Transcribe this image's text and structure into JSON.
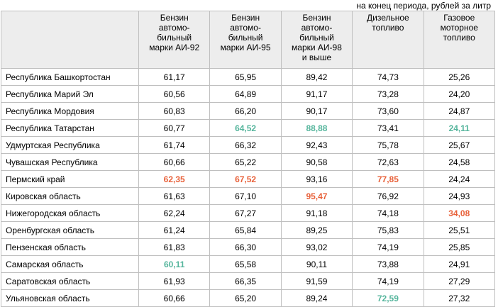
{
  "caption": "на конец периода, рублей за литр",
  "columns": [
    [
      "Бензин",
      "автомо-",
      "бильный",
      "марки АИ-92"
    ],
    [
      "Бензин",
      "автомо-",
      "бильный",
      "марки АИ-95"
    ],
    [
      "Бензин",
      "автомо-",
      "бильный",
      "марки АИ-98",
      "и выше"
    ],
    [
      "Дизельное",
      "топливо"
    ],
    [
      "Газовое",
      "моторное",
      "топливо"
    ]
  ],
  "rows": [
    {
      "name": "Республика Башкортостан",
      "values": [
        "61,17",
        "65,95",
        "89,42",
        "74,73",
        "25,26"
      ],
      "hl": [
        "",
        "",
        "",
        "",
        ""
      ]
    },
    {
      "name": "Республика Марий Эл",
      "values": [
        "60,56",
        "64,89",
        "91,17",
        "73,28",
        "24,20"
      ],
      "hl": [
        "",
        "",
        "",
        "",
        ""
      ]
    },
    {
      "name": "Республика Мордовия",
      "values": [
        "60,83",
        "66,20",
        "90,17",
        "73,60",
        "24,87"
      ],
      "hl": [
        "",
        "",
        "",
        "",
        ""
      ]
    },
    {
      "name": "Республика Татарстан",
      "values": [
        "60,77",
        "64,52",
        "88,88",
        "73,41",
        "24,11"
      ],
      "hl": [
        "",
        "green",
        "green",
        "",
        "green"
      ]
    },
    {
      "name": "Удмуртская Республика",
      "values": [
        "61,74",
        "66,32",
        "92,43",
        "75,78",
        "25,67"
      ],
      "hl": [
        "",
        "",
        "",
        "",
        ""
      ]
    },
    {
      "name": "Чувашская Республика",
      "values": [
        "60,66",
        "65,22",
        "90,58",
        "72,63",
        "24,58"
      ],
      "hl": [
        "",
        "",
        "",
        "",
        ""
      ]
    },
    {
      "name": "Пермский край",
      "values": [
        "62,35",
        "67,52",
        "93,16",
        "77,85",
        "24,24"
      ],
      "hl": [
        "red",
        "red",
        "",
        "red",
        ""
      ]
    },
    {
      "name": "Кировская область",
      "values": [
        "61,63",
        "67,10",
        "95,47",
        "76,92",
        "24,93"
      ],
      "hl": [
        "",
        "",
        "red",
        "",
        ""
      ]
    },
    {
      "name": "Нижегородская область",
      "values": [
        "62,24",
        "67,27",
        "91,18",
        "74,18",
        "34,08"
      ],
      "hl": [
        "",
        "",
        "",
        "",
        "red"
      ]
    },
    {
      "name": "Оренбургская область",
      "values": [
        "61,24",
        "65,84",
        "89,25",
        "75,83",
        "25,51"
      ],
      "hl": [
        "",
        "",
        "",
        "",
        ""
      ]
    },
    {
      "name": "Пензенская область",
      "values": [
        "61,83",
        "66,30",
        "93,02",
        "74,19",
        "25,85"
      ],
      "hl": [
        "",
        "",
        "",
        "",
        ""
      ]
    },
    {
      "name": "Самарская область",
      "values": [
        "60,11",
        "65,58",
        "90,11",
        "73,88",
        "24,91"
      ],
      "hl": [
        "green",
        "",
        "",
        "",
        ""
      ]
    },
    {
      "name": "Саратовская область",
      "values": [
        "61,93",
        "66,35",
        "91,59",
        "74,19",
        "27,29"
      ],
      "hl": [
        "",
        "",
        "",
        "",
        ""
      ]
    },
    {
      "name": "Ульяновская область",
      "values": [
        "60,66",
        "65,20",
        "89,24",
        "72,59",
        "27,32"
      ],
      "hl": [
        "",
        "",
        "",
        "green",
        ""
      ]
    }
  ],
  "colors": {
    "highlight_max": "#e8613a",
    "highlight_min": "#55b59c",
    "header_bg": "#ededed",
    "border": "#bfbfbf"
  }
}
